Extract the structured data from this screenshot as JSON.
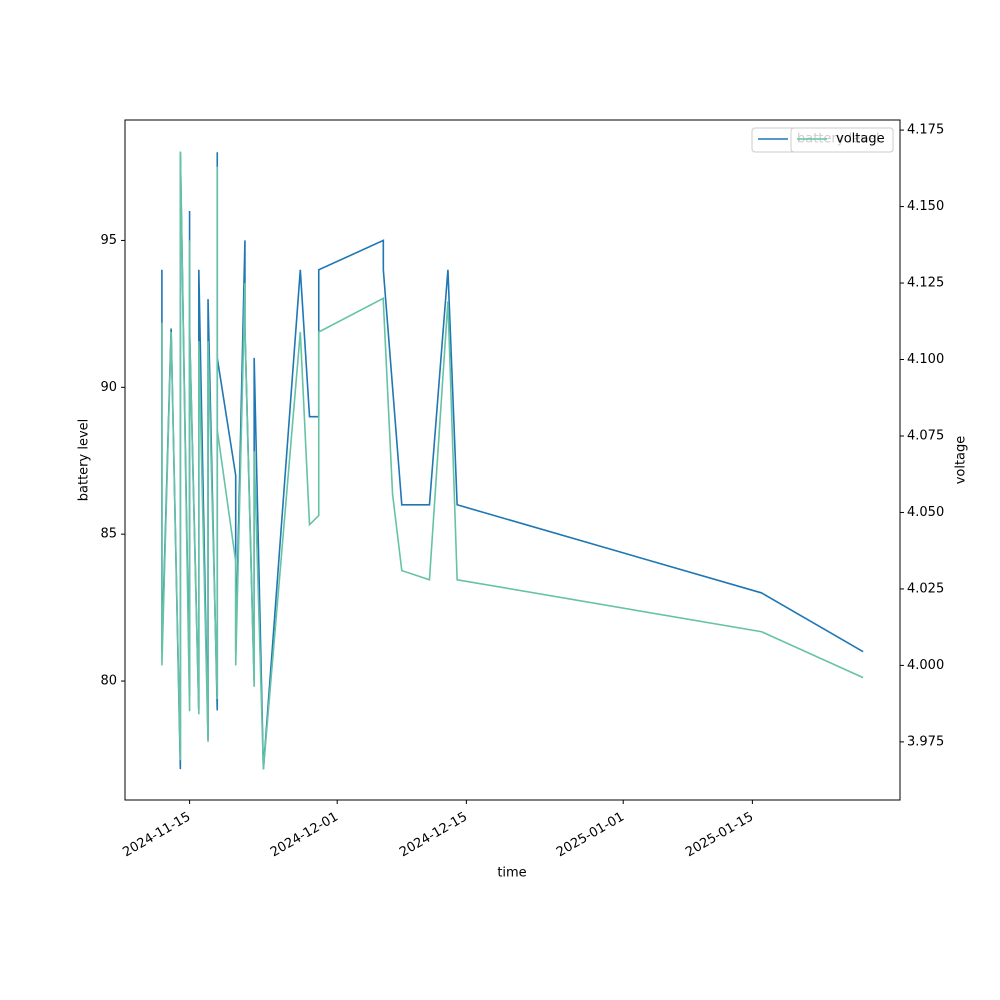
{
  "chart_data": {
    "type": "line",
    "x_label": "time",
    "y_label": "battery level",
    "y2_label": "voltage",
    "x": [
      "2024-11-12",
      "2024-11-12",
      "2024-11-13",
      "2024-11-14",
      "2024-11-14",
      "2024-11-15",
      "2024-11-15",
      "2024-11-15",
      "2024-11-16",
      "2024-11-16",
      "2024-11-17",
      "2024-11-17",
      "2024-11-18",
      "2024-11-18",
      "2024-11-18",
      "2024-11-20",
      "2024-11-20",
      "2024-11-21",
      "2024-11-21",
      "2024-11-22",
      "2024-11-22",
      "2024-11-23",
      "2024-11-27",
      "2024-11-28",
      "2024-11-29",
      "2024-11-29",
      "2024-12-06",
      "2024-12-06",
      "2024-12-07",
      "2024-12-08",
      "2024-12-11",
      "2024-12-13",
      "2024-12-14",
      "2025-01-16",
      "2025-01-27"
    ],
    "series": [
      {
        "name": "battery level",
        "color": "#1f77b4",
        "axis": "y",
        "values": [
          94,
          81,
          92,
          77,
          98,
          79.5,
          96,
          92,
          79,
          94,
          78,
          93,
          79,
          98,
          91,
          87,
          81,
          95,
          92,
          80,
          91,
          77,
          94,
          89,
          89,
          94,
          95,
          94,
          90,
          86,
          86,
          94,
          86,
          83,
          81
        ]
      },
      {
        "name": "voltage",
        "color": "#66c2a5",
        "axis": "y2",
        "values": [
          4.112,
          4.0,
          4.109,
          3.969,
          4.168,
          3.985,
          4.139,
          4.109,
          3.984,
          4.106,
          3.975,
          4.106,
          3.989,
          4.163,
          4.077,
          4.034,
          4.0,
          4.125,
          4.11,
          3.993,
          4.07,
          3.966,
          4.109,
          4.046,
          4.049,
          4.109,
          4.12,
          4.119,
          4.056,
          4.031,
          4.028,
          4.119,
          4.028,
          4.011,
          3.996
        ]
      }
    ],
    "xlim": [
      "2024-11-08",
      "2025-01-31"
    ],
    "xticks": [
      "2024-11-15",
      "2024-12-01",
      "2024-12-15",
      "2025-01-01",
      "2025-01-15"
    ],
    "ylim": [
      75.95,
      99.1
    ],
    "yticks": [
      80,
      85,
      90,
      95
    ],
    "y2lim": [
      3.956,
      4.1783
    ],
    "y2ticks": [
      {
        "value": 3.975,
        "label": "3.975"
      },
      {
        "value": 4.0,
        "label": "4.000"
      },
      {
        "value": 4.025,
        "label": "4.025"
      },
      {
        "value": 4.05,
        "label": "4.050"
      },
      {
        "value": 4.075,
        "label": "4.075"
      },
      {
        "value": 4.1,
        "label": "4.100"
      },
      {
        "value": 4.125,
        "label": "4.125"
      },
      {
        "value": 4.15,
        "label": "4.150"
      },
      {
        "value": 4.175,
        "label": "4.175"
      }
    ],
    "grid": false,
    "legend": "upper right"
  }
}
